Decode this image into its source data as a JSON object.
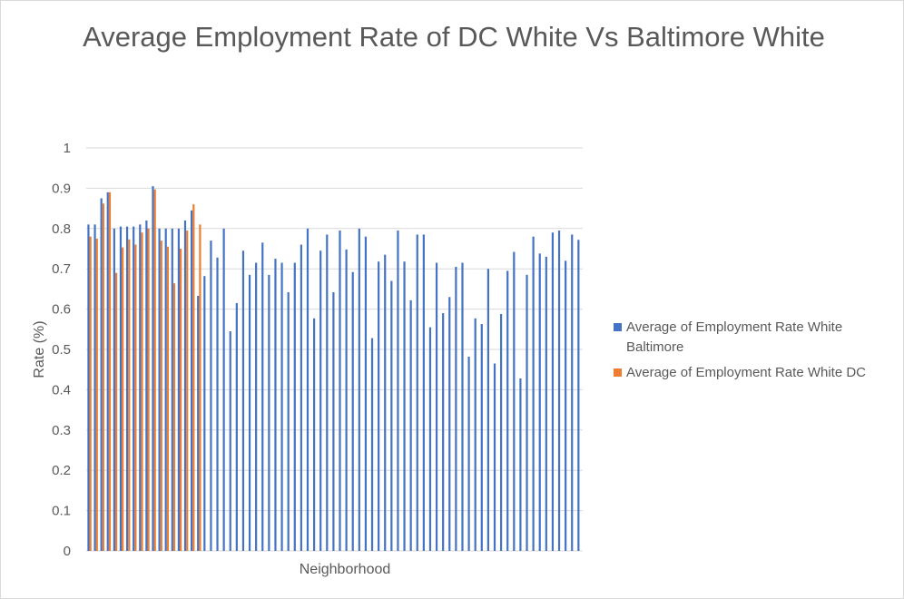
{
  "chart_data": {
    "type": "bar",
    "title": "Average Employment Rate of DC White Vs Baltimore White",
    "xlabel": "Neighborhood",
    "ylabel": "Rate (%)",
    "ylim": [
      0,
      1
    ],
    "yticks": [
      "0",
      "0.1",
      "0.2",
      "0.3",
      "0.4",
      "0.5",
      "0.6",
      "0.7",
      "0.8",
      "0.9",
      "1"
    ],
    "grid": true,
    "legend_position": "right",
    "series": [
      {
        "name": "Average of Employment Rate White Baltimore",
        "color": "#4472C4",
        "values": [
          0.81,
          0.81,
          0.875,
          0.89,
          0.8,
          0.805,
          0.805,
          0.805,
          0.81,
          0.82,
          0.905,
          0.8,
          0.8,
          0.8,
          0.8,
          0.82,
          0.845,
          0.633,
          0.682,
          0.77,
          0.728,
          0.8,
          0.545,
          0.615,
          0.745,
          0.685,
          0.715,
          0.765,
          0.685,
          0.725,
          0.715,
          0.642,
          0.715,
          0.76,
          0.8,
          0.577,
          0.745,
          0.785,
          0.642,
          0.795,
          0.748,
          0.692,
          0.8,
          0.78,
          0.528,
          0.718,
          0.735,
          0.67,
          0.795,
          0.718,
          0.622,
          0.785,
          0.785,
          0.555,
          0.715,
          0.59,
          0.63,
          0.705,
          0.715,
          0.482,
          0.577,
          0.563,
          0.7,
          0.465,
          0.588,
          0.695,
          0.742,
          0.428,
          0.685,
          0.78,
          0.738,
          0.73,
          0.79,
          0.795,
          0.72,
          0.785,
          0.772
        ]
      },
      {
        "name": "Average of Employment Rate White DC",
        "color": "#ED7D31",
        "values": [
          0.78,
          0.775,
          0.862,
          0.89,
          0.69,
          0.753,
          0.773,
          0.76,
          0.79,
          0.8,
          0.897,
          0.77,
          0.755,
          0.664,
          0.75,
          0.795,
          0.86,
          0.81
        ]
      }
    ]
  }
}
